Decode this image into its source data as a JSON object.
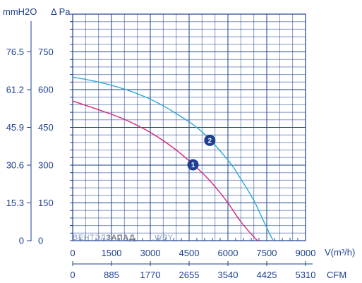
{
  "chart_data": {
    "type": "line",
    "units": {
      "left_mm": "mmH2O",
      "left_pa": "Δ Pa",
      "x_flow": "V(m³/h)",
      "x_cfm": "CFM"
    },
    "x_ticks": [
      "0",
      "1500",
      "3000",
      "4500",
      "6000",
      "7500",
      "9000"
    ],
    "x_cfm_ticks": [
      "0",
      "885",
      "1770",
      "2655",
      "3540",
      "4425",
      "5310"
    ],
    "y_pa_ticks": [
      "0",
      "150",
      "300",
      "450",
      "600",
      "750"
    ],
    "y_mm_ticks": [
      "0",
      "15.3",
      "30.6",
      "45.9",
      "61.2",
      "76.5"
    ],
    "xlim": [
      0,
      9000
    ],
    "ylim": [
      0,
      900
    ],
    "series": [
      {
        "name": "1",
        "color": "#d6247a",
        "x": [
          0,
          1000,
          2000,
          3000,
          4000,
          5000,
          5500,
          6000,
          6500,
          7000,
          7150
        ],
        "y": [
          555,
          520,
          482,
          430,
          360,
          270,
          215,
          150,
          75,
          15,
          0
        ]
      },
      {
        "name": "2",
        "color": "#2ea9d8",
        "x": [
          0,
          1000,
          2000,
          3000,
          4000,
          5000,
          6000,
          6500,
          7000,
          7300,
          7600,
          7750
        ],
        "y": [
          650,
          630,
          602,
          562,
          505,
          432,
          320,
          245,
          160,
          95,
          30,
          0
        ]
      }
    ],
    "watermark": {
      "part1": "ВЕНТЭЛ",
      "part2": "ЗАПАД",
      "part3": ".WBY"
    }
  }
}
